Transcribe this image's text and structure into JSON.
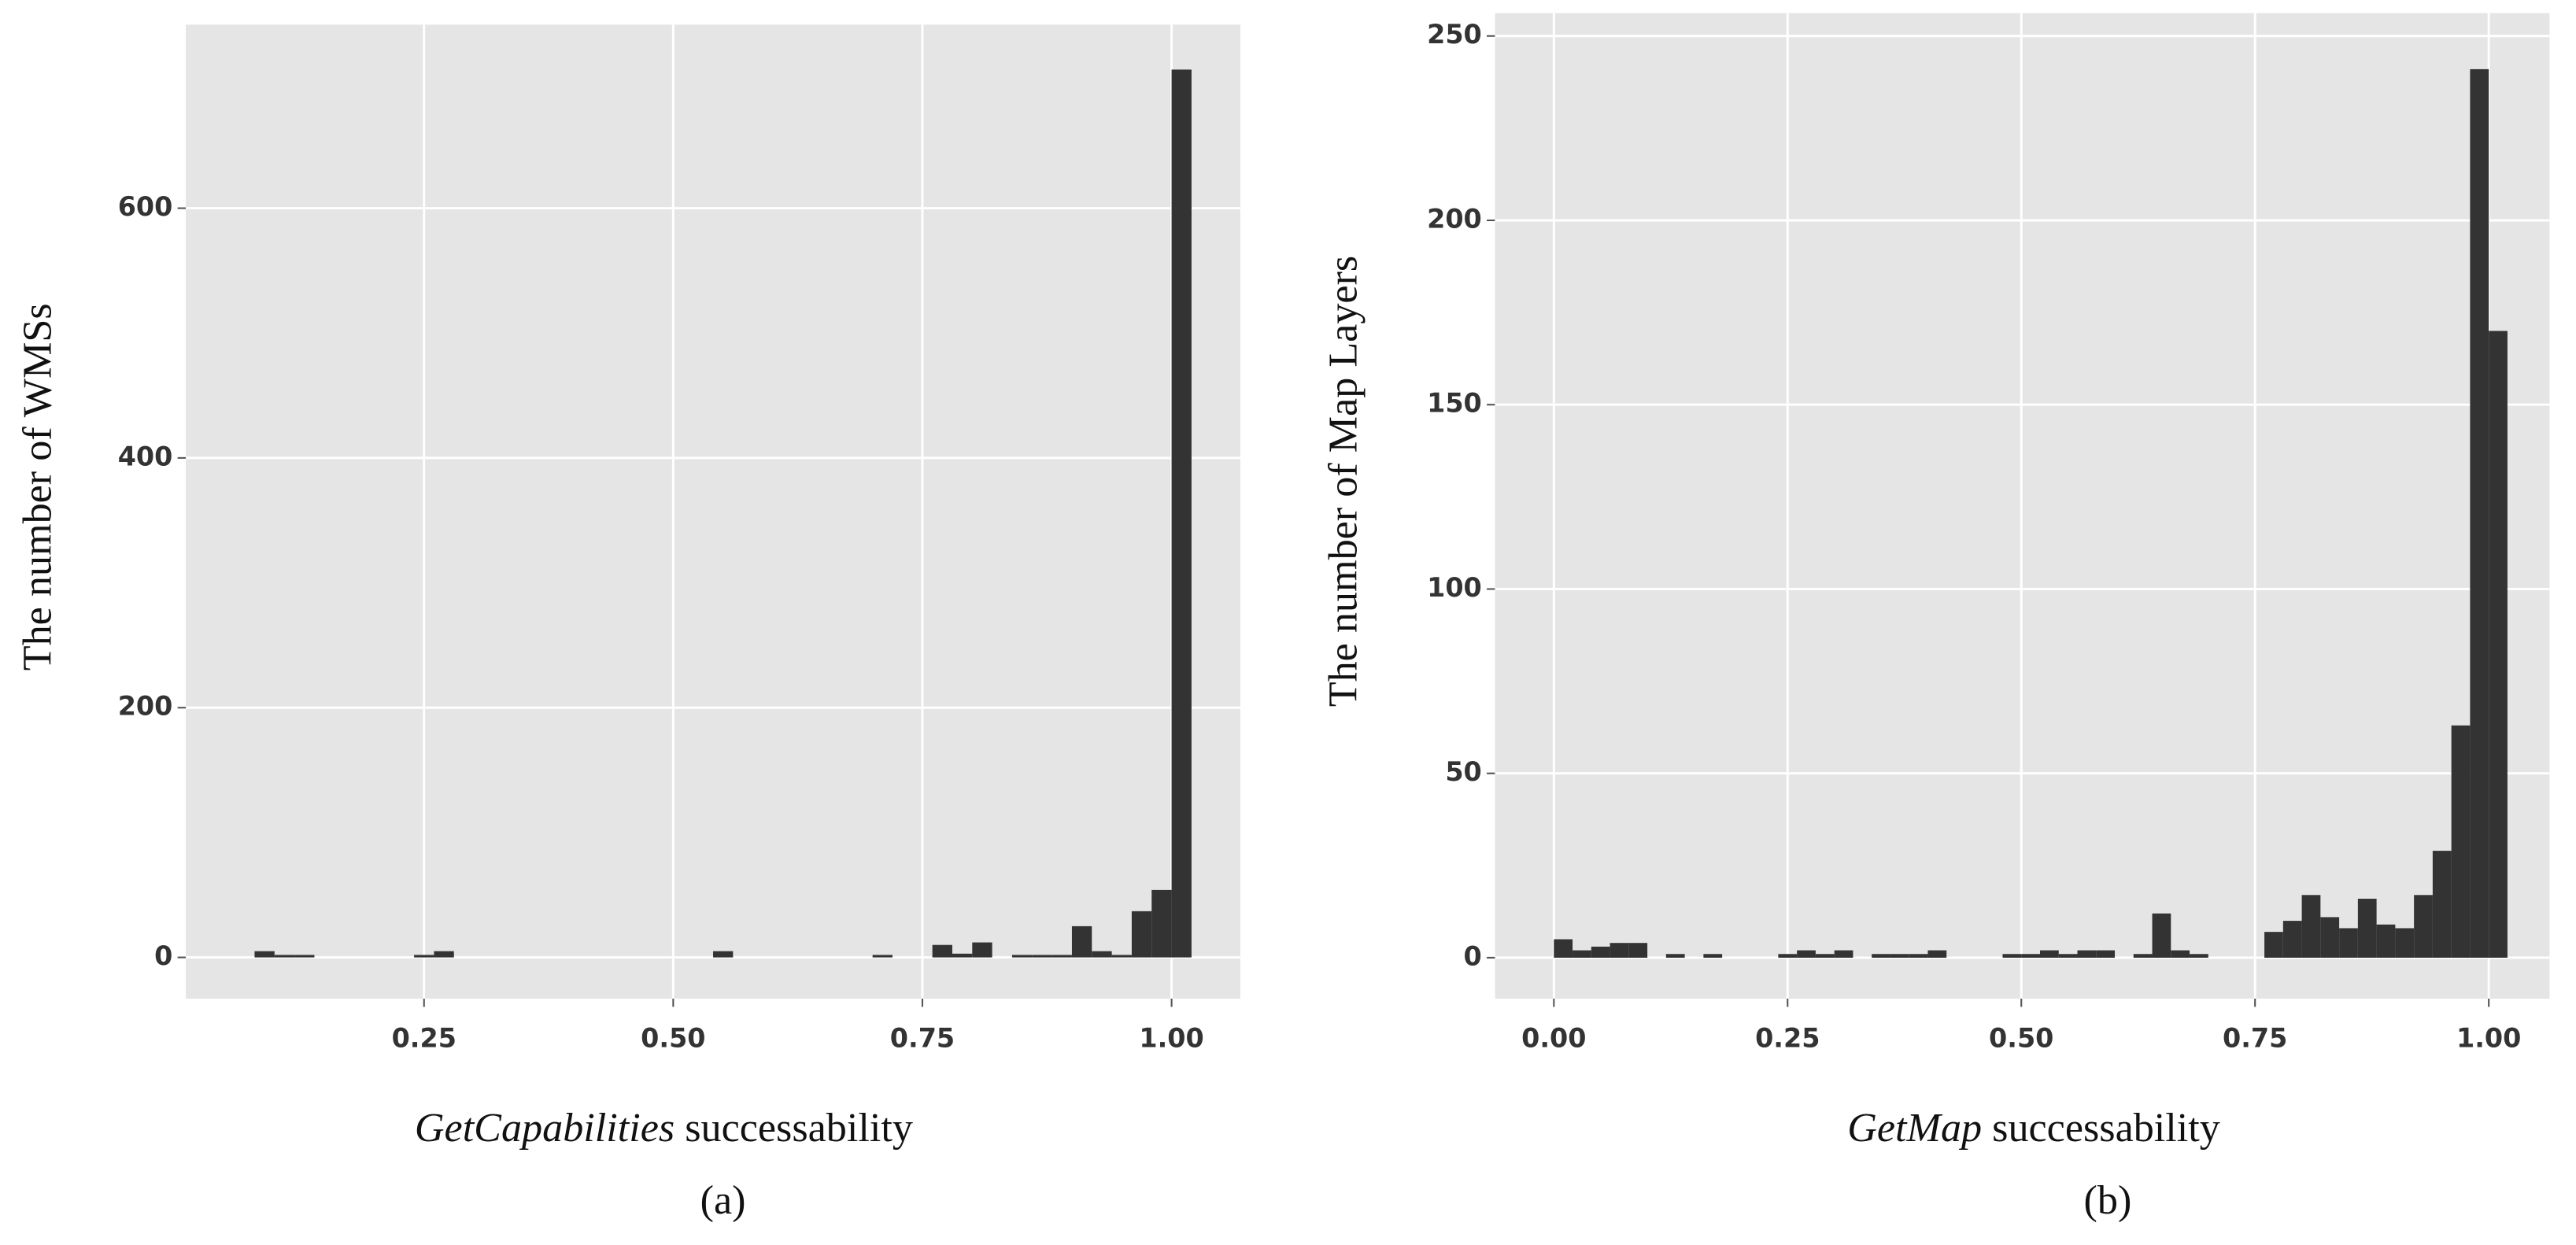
{
  "chart_data": [
    {
      "type": "histogram",
      "ylabel": "The number of WMSs",
      "xlabel": [
        "GetCapabilities",
        "successability"
      ],
      "caption": "(a)",
      "bins": [
        0.08,
        0.1,
        0.12,
        0.14,
        0.16,
        0.18,
        0.2,
        0.22,
        0.24,
        0.26,
        0.28,
        0.3,
        0.32,
        0.34,
        0.36,
        0.38,
        0.4,
        0.42,
        0.44,
        0.46,
        0.48,
        0.5,
        0.52,
        0.54,
        0.56,
        0.58,
        0.6,
        0.62,
        0.64,
        0.66,
        0.68,
        0.7,
        0.72,
        0.74,
        0.76,
        0.78,
        0.8,
        0.82,
        0.84,
        0.86,
        0.88,
        0.9,
        0.92,
        0.94,
        0.96,
        0.98,
        1,
        1.02
      ],
      "counts": [
        5,
        2,
        2,
        0,
        0,
        0,
        0,
        0,
        2,
        5,
        0,
        0,
        0,
        0,
        0,
        0,
        0,
        0,
        0,
        0,
        0,
        0,
        0,
        5,
        0,
        0,
        0,
        0,
        0,
        0,
        0,
        2,
        0,
        0,
        10,
        3,
        12,
        0,
        2,
        2,
        2,
        25,
        5,
        2,
        37,
        54,
        711
      ],
      "color": "#333333",
      "grid": true,
      "xlim": [
        0.011,
        1.069
      ],
      "xticks": [
        {
          "value": 0.25,
          "label": "0.25"
        },
        {
          "value": 0.5,
          "label": "0.50"
        },
        {
          "value": 0.75,
          "label": "0.75"
        },
        {
          "value": 1,
          "label": "1.00"
        }
      ],
      "ylim": [
        -33,
        747
      ],
      "yticks": [
        0,
        200,
        400,
        600
      ]
    },
    {
      "type": "histogram",
      "ylabel": "The number of Map Layers",
      "xlabel": [
        "GetMap",
        "successability"
      ],
      "caption": "(b)",
      "bins": [
        0,
        0.02,
        0.04,
        0.06,
        0.08,
        0.1,
        0.12,
        0.14,
        0.16,
        0.18,
        0.2,
        0.22,
        0.24,
        0.26,
        0.28,
        0.3,
        0.32,
        0.34,
        0.36,
        0.38,
        0.4,
        0.42,
        0.44,
        0.46,
        0.48,
        0.5,
        0.52,
        0.54,
        0.56,
        0.58,
        0.6,
        0.62,
        0.64,
        0.66,
        0.68,
        0.7,
        0.72,
        0.74,
        0.76,
        0.78,
        0.8,
        0.82,
        0.84,
        0.86,
        0.88,
        0.9,
        0.92,
        0.94,
        0.96,
        0.98,
        1,
        1.02
      ],
      "counts": [
        5,
        2,
        3,
        4,
        4,
        0,
        1,
        0,
        1,
        0,
        0,
        0,
        1,
        2,
        1,
        2,
        0,
        1,
        1,
        1,
        2,
        0,
        0,
        0,
        1,
        1,
        2,
        1,
        2,
        2,
        0,
        1,
        12,
        2,
        1,
        0,
        0,
        0,
        7,
        10,
        17,
        11,
        8,
        16,
        9,
        8,
        17,
        29,
        63,
        241,
        170
      ],
      "color": "#333333",
      "grid": true,
      "xlim": [
        -0.063,
        1.065
      ],
      "xticks": [
        {
          "value": 0,
          "label": "0.00"
        },
        {
          "value": 0.25,
          "label": "0.25"
        },
        {
          "value": 0.5,
          "label": "0.50"
        },
        {
          "value": 0.75,
          "label": "0.75"
        },
        {
          "value": 1,
          "label": "1.00"
        }
      ],
      "ylim": [
        -11.1,
        256.2
      ],
      "yticks": [
        0,
        50,
        100,
        150,
        200,
        250
      ]
    }
  ]
}
